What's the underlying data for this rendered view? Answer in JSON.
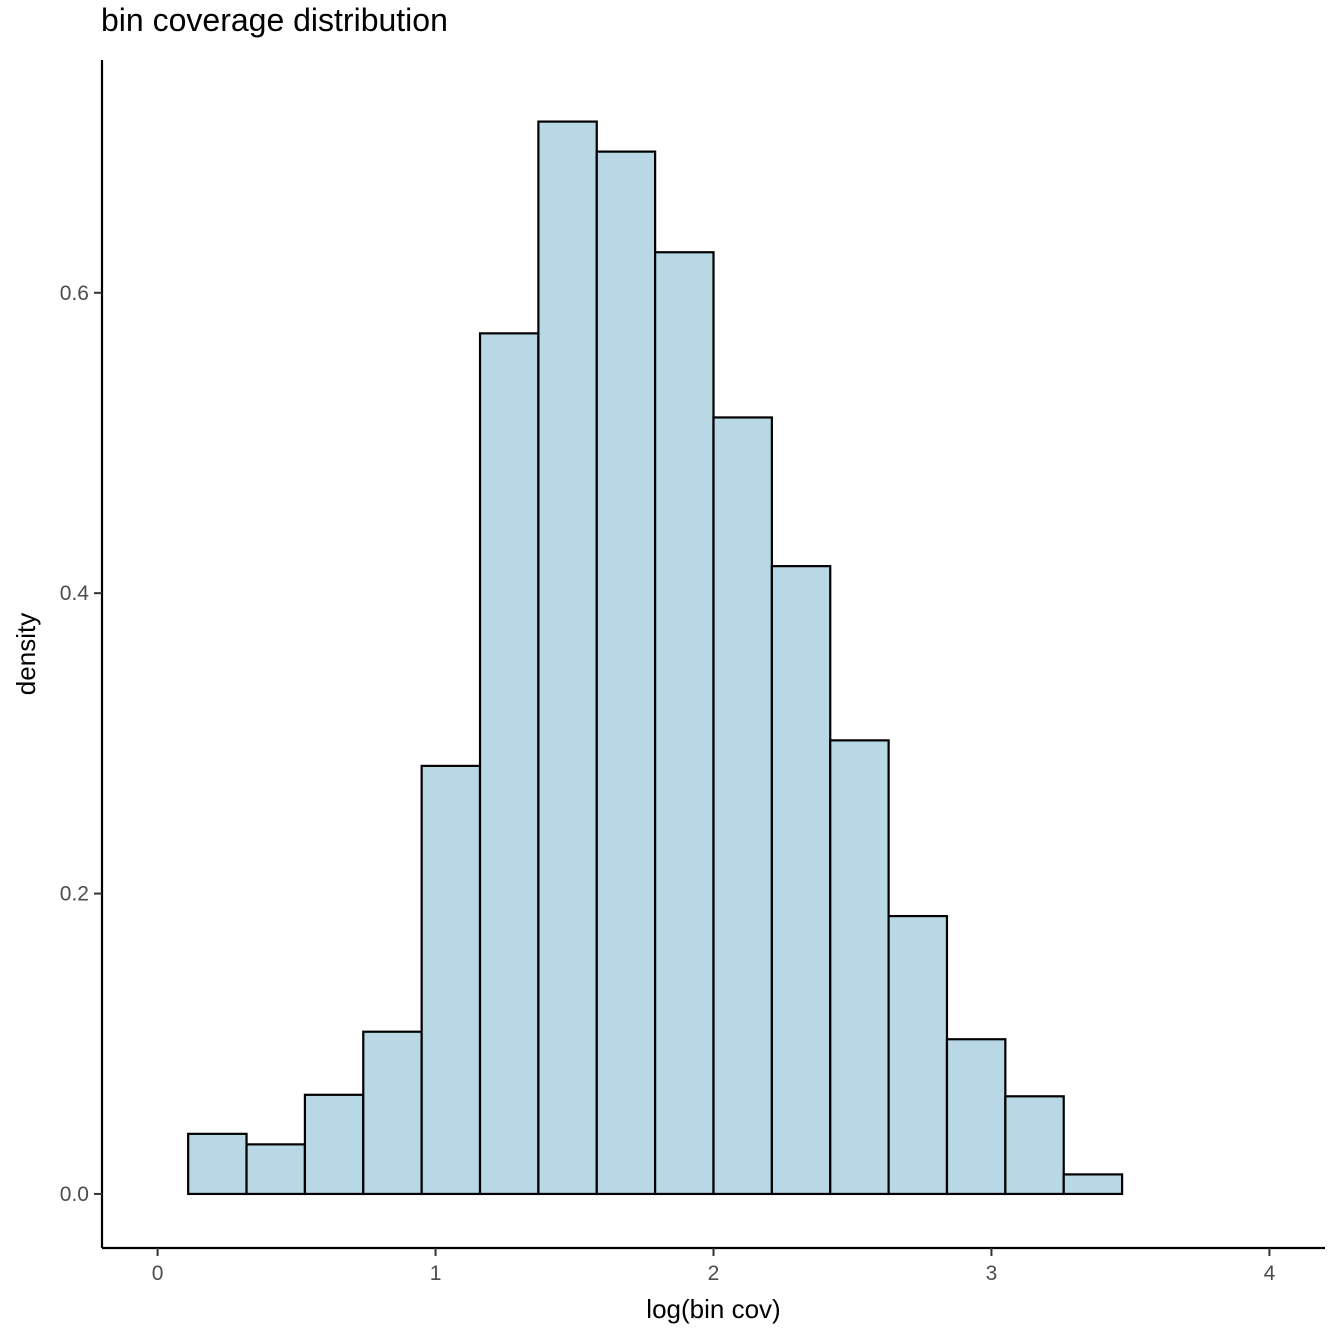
{
  "chart_data": {
    "type": "bar",
    "title": "bin coverage distribution",
    "xlabel": "log(bin cov)",
    "ylabel": "density",
    "bin_width": 0.21,
    "bins": [
      {
        "x0": 0.11,
        "x1": 0.32,
        "value": 0.04
      },
      {
        "x0": 0.32,
        "x1": 0.53,
        "value": 0.033
      },
      {
        "x0": 0.53,
        "x1": 0.74,
        "value": 0.066
      },
      {
        "x0": 0.74,
        "x1": 0.95,
        "value": 0.108
      },
      {
        "x0": 0.95,
        "x1": 1.16,
        "value": 0.285
      },
      {
        "x0": 1.16,
        "x1": 1.37,
        "value": 0.573
      },
      {
        "x0": 1.37,
        "x1": 1.58,
        "value": 0.714
      },
      {
        "x0": 1.58,
        "x1": 1.79,
        "value": 0.694
      },
      {
        "x0": 1.79,
        "x1": 2.0,
        "value": 0.627
      },
      {
        "x0": 2.0,
        "x1": 2.21,
        "value": 0.517
      },
      {
        "x0": 2.21,
        "x1": 2.42,
        "value": 0.418
      },
      {
        "x0": 2.42,
        "x1": 2.63,
        "value": 0.302
      },
      {
        "x0": 2.63,
        "x1": 2.84,
        "value": 0.185
      },
      {
        "x0": 2.84,
        "x1": 3.05,
        "value": 0.103
      },
      {
        "x0": 3.05,
        "x1": 3.26,
        "value": 0.065
      },
      {
        "x0": 3.26,
        "x1": 3.47,
        "value": 0.013
      },
      {
        "x0": 3.47,
        "x1": 3.68,
        "value": 0.0
      },
      {
        "x0": 3.68,
        "x1": 3.89,
        "value": 0.0
      }
    ],
    "xlim": [
      -0.2,
      4.2
    ],
    "ylim": [
      -0.036,
      0.755
    ],
    "x_ticks": [
      0,
      1,
      2,
      3,
      4
    ],
    "x_tick_labels": [
      "0",
      "1",
      "2",
      "3",
      "4"
    ],
    "y_ticks": [
      0.0,
      0.2,
      0.4,
      0.6
    ],
    "y_tick_labels": [
      "0.0",
      "0.2",
      "0.4",
      "0.6"
    ],
    "grid": false,
    "legend": "none",
    "colors": {
      "bar_fill": "#b7d8e4",
      "bar_stroke": "#000000",
      "axis": "#000000",
      "tick_text": "#4d4d4d"
    }
  }
}
